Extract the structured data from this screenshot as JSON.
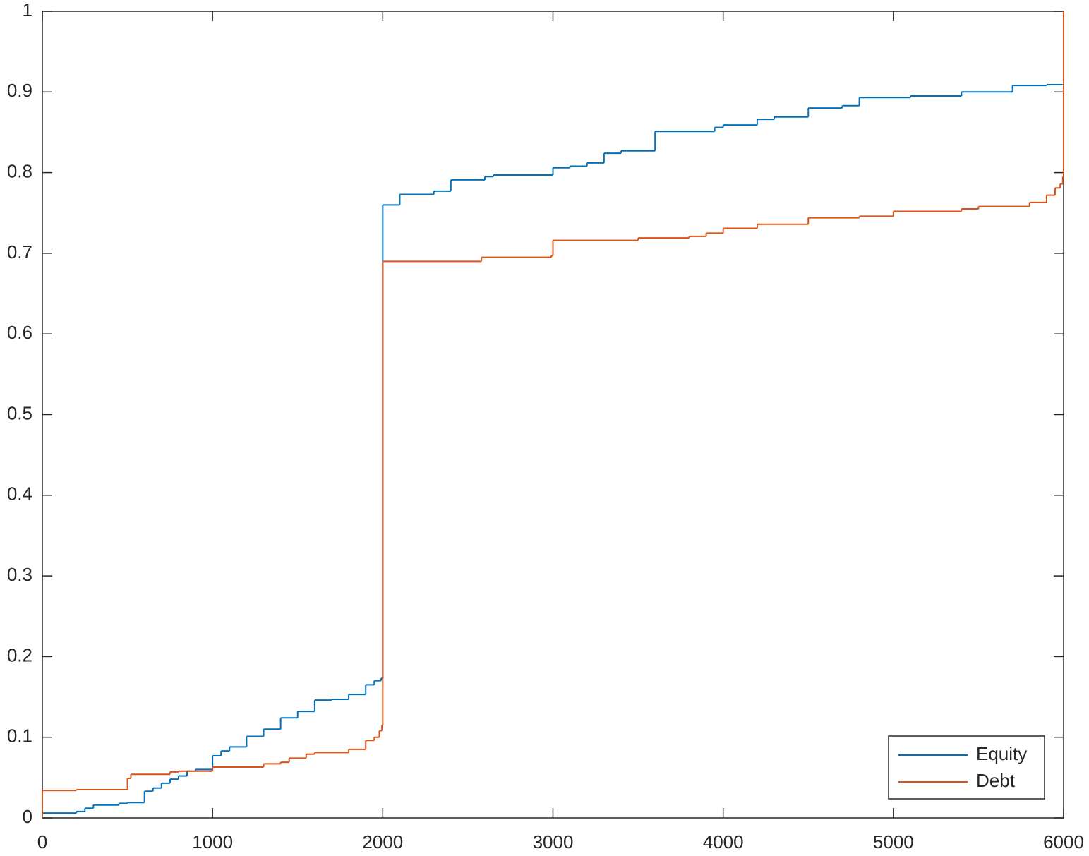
{
  "chart_data": {
    "type": "line",
    "step": "post",
    "series": [
      {
        "name": "Equity",
        "color": "#0072bd",
        "x": [
          0,
          200,
          250,
          300,
          450,
          500,
          600,
          650,
          700,
          750,
          800,
          850,
          900,
          1000,
          1050,
          1100,
          1200,
          1300,
          1400,
          1500,
          1600,
          1700,
          1800,
          1900,
          1950,
          1990,
          2000,
          2100,
          2300,
          2400,
          2600,
          2650,
          3000,
          3100,
          3200,
          3300,
          3400,
          3600,
          3950,
          4000,
          4200,
          4300,
          4500,
          4700,
          4800,
          5100,
          5400,
          5700,
          5900,
          6000
        ],
        "values": [
          0.006,
          0.008,
          0.012,
          0.016,
          0.018,
          0.019,
          0.033,
          0.037,
          0.043,
          0.048,
          0.052,
          0.058,
          0.06,
          0.077,
          0.083,
          0.088,
          0.101,
          0.11,
          0.124,
          0.132,
          0.146,
          0.147,
          0.153,
          0.165,
          0.17,
          0.173,
          0.76,
          0.773,
          0.777,
          0.791,
          0.795,
          0.797,
          0.806,
          0.808,
          0.812,
          0.824,
          0.827,
          0.851,
          0.856,
          0.859,
          0.866,
          0.869,
          0.88,
          0.883,
          0.893,
          0.895,
          0.9,
          0.908,
          0.909,
          0.909
        ]
      },
      {
        "name": "Debt",
        "color": "#d95319",
        "x": [
          0,
          0,
          200,
          500,
          520,
          750,
          800,
          1000,
          1300,
          1400,
          1450,
          1550,
          1600,
          1800,
          1900,
          1950,
          1980,
          1995,
          2000,
          2580,
          2990,
          3000,
          3500,
          3800,
          3900,
          4000,
          4200,
          4500,
          4800,
          5000,
          5400,
          5500,
          5800,
          5900,
          5950,
          5980,
          5995,
          6000
        ],
        "values": [
          0,
          0.034,
          0.035,
          0.049,
          0.054,
          0.057,
          0.058,
          0.063,
          0.067,
          0.069,
          0.074,
          0.079,
          0.081,
          0.085,
          0.096,
          0.1,
          0.108,
          0.115,
          0.69,
          0.695,
          0.697,
          0.716,
          0.719,
          0.721,
          0.725,
          0.731,
          0.736,
          0.744,
          0.746,
          0.752,
          0.755,
          0.758,
          0.763,
          0.772,
          0.781,
          0.786,
          0.795,
          1
        ]
      }
    ],
    "xlim": [
      0,
      6000
    ],
    "xticks": [
      0,
      1000,
      2000,
      3000,
      4000,
      5000,
      6000
    ],
    "ylim": [
      0,
      1
    ],
    "yticks": [
      0,
      0.1,
      0.2,
      0.3,
      0.4,
      0.5,
      0.6,
      0.7,
      0.8,
      0.9,
      1
    ],
    "legend": "bottom-right"
  }
}
